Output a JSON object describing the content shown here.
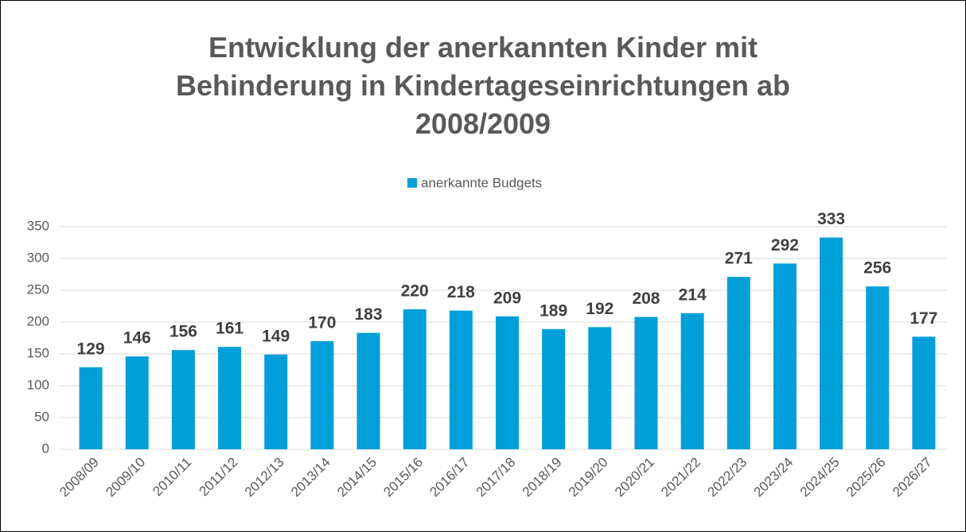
{
  "chart_data": {
    "type": "bar",
    "title": "Entwicklung der anerkannten Kinder mit Behinderung in Kindertageseinrichtungen ab 2008/2009",
    "categories": [
      "2008/09",
      "2009/10",
      "2010/11",
      "2011/12",
      "2012/13",
      "2013/14",
      "2014/15",
      "2015/16",
      "2016/17",
      "2017/18",
      "2018/19",
      "2019/20",
      "2020/21",
      "2021/22",
      "2022/23",
      "2023/24",
      "2024/25",
      "2025/26",
      "2026/27"
    ],
    "series": [
      {
        "name": "anerkannte Budgets",
        "color": "#009fd9",
        "values": [
          129,
          146,
          156,
          161,
          149,
          170,
          183,
          220,
          218,
          209,
          189,
          192,
          208,
          214,
          271,
          292,
          333,
          256,
          177
        ]
      }
    ],
    "ylim": [
      0,
      350
    ],
    "yticks": [
      0,
      50,
      100,
      150,
      200,
      250,
      300,
      350
    ],
    "grid": true,
    "legend": "top"
  }
}
